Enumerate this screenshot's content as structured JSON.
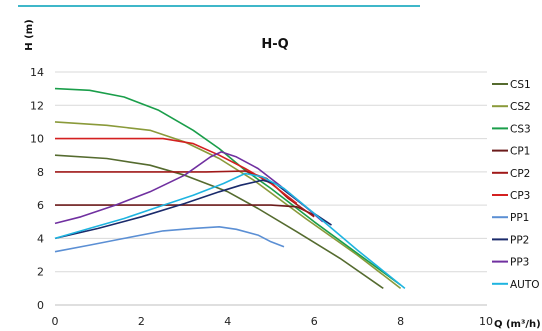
{
  "chart_data": {
    "type": "line",
    "title": "H-Q",
    "xlabel": "Q (m³/h)",
    "ylabel": "H (m)",
    "xlim": [
      0,
      10
    ],
    "ylim": [
      0,
      14
    ],
    "x_ticks": [
      "0",
      "2",
      "4",
      "6",
      "8",
      "10"
    ],
    "y_ticks": [
      "0",
      "2",
      "4",
      "6",
      "8",
      "10",
      "12",
      "14"
    ],
    "grid": "horizontal",
    "legend_position": "right",
    "series": [
      {
        "name": "CS1",
        "color": "#556b2f",
        "points": [
          [
            0,
            9.0
          ],
          [
            1.2,
            8.8
          ],
          [
            2.2,
            8.4
          ],
          [
            3.0,
            7.8
          ],
          [
            4.0,
            6.8
          ],
          [
            4.7,
            5.8
          ],
          [
            5.6,
            4.4
          ],
          [
            6.6,
            2.8
          ],
          [
            7.6,
            1.0
          ]
        ]
      },
      {
        "name": "CS2",
        "color": "#8a9a3a",
        "points": [
          [
            0,
            11.0
          ],
          [
            1.2,
            10.8
          ],
          [
            2.2,
            10.5
          ],
          [
            3.0,
            9.8
          ],
          [
            3.8,
            8.8
          ],
          [
            4.6,
            7.5
          ],
          [
            5.8,
            5.2
          ],
          [
            7.0,
            3.0
          ],
          [
            8.0,
            1.0
          ]
        ]
      },
      {
        "name": "CS3",
        "color": "#1a9e4a",
        "points": [
          [
            0,
            13.0
          ],
          [
            0.8,
            12.9
          ],
          [
            1.6,
            12.5
          ],
          [
            2.4,
            11.7
          ],
          [
            3.2,
            10.5
          ],
          [
            3.8,
            9.4
          ],
          [
            4.4,
            8.1
          ],
          [
            5.0,
            7.0
          ],
          [
            6.0,
            5.0
          ],
          [
            7.0,
            3.1
          ],
          [
            8.0,
            1.2
          ]
        ]
      },
      {
        "name": "CP1",
        "color": "#6b1a1a",
        "points": [
          [
            0,
            6.0
          ],
          [
            2.0,
            6.0
          ],
          [
            4.0,
            6.0
          ],
          [
            5.0,
            6.0
          ],
          [
            5.6,
            5.9
          ],
          [
            6.0,
            5.4
          ]
        ]
      },
      {
        "name": "CP2",
        "color": "#a01818",
        "points": [
          [
            0,
            8.0
          ],
          [
            2.0,
            8.0
          ],
          [
            3.5,
            8.0
          ],
          [
            4.4,
            8.05
          ],
          [
            4.9,
            7.6
          ],
          [
            5.4,
            6.4
          ],
          [
            6.0,
            5.3
          ]
        ]
      },
      {
        "name": "CP3",
        "color": "#d42020",
        "points": [
          [
            0,
            10.0
          ],
          [
            2.5,
            10.0
          ],
          [
            3.2,
            9.7
          ],
          [
            3.8,
            9.0
          ],
          [
            4.4,
            8.2
          ],
          [
            5.0,
            7.3
          ],
          [
            5.6,
            6.1
          ]
        ]
      },
      {
        "name": "PP1",
        "color": "#5b8fd4",
        "points": [
          [
            0,
            3.2
          ],
          [
            0.8,
            3.6
          ],
          [
            1.6,
            4.0
          ],
          [
            2.5,
            4.45
          ],
          [
            3.2,
            4.6
          ],
          [
            3.8,
            4.7
          ],
          [
            4.2,
            4.55
          ],
          [
            4.7,
            4.2
          ],
          [
            5.0,
            3.8
          ],
          [
            5.3,
            3.5
          ]
        ]
      },
      {
        "name": "PP2",
        "color": "#1a2a6b",
        "points": [
          [
            0,
            4.0
          ],
          [
            1.0,
            4.6
          ],
          [
            2.0,
            5.3
          ],
          [
            3.0,
            6.1
          ],
          [
            3.8,
            6.8
          ],
          [
            4.3,
            7.2
          ],
          [
            4.8,
            7.5
          ],
          [
            5.1,
            7.3
          ],
          [
            5.5,
            6.5
          ],
          [
            6.0,
            5.5
          ],
          [
            6.4,
            4.8
          ]
        ]
      },
      {
        "name": "PP3",
        "color": "#7030a0",
        "points": [
          [
            0,
            4.9
          ],
          [
            0.6,
            5.3
          ],
          [
            1.4,
            6.0
          ],
          [
            2.2,
            6.8
          ],
          [
            3.0,
            7.8
          ],
          [
            3.6,
            8.9
          ],
          [
            3.85,
            9.2
          ],
          [
            4.2,
            8.9
          ],
          [
            4.7,
            8.2
          ],
          [
            5.2,
            7.2
          ],
          [
            5.8,
            5.9
          ],
          [
            6.2,
            5.0
          ]
        ]
      },
      {
        "name": "AUTO",
        "color": "#1eb4e0",
        "points": [
          [
            0,
            4.0
          ],
          [
            0.8,
            4.6
          ],
          [
            1.6,
            5.2
          ],
          [
            2.4,
            5.9
          ],
          [
            3.2,
            6.6
          ],
          [
            3.9,
            7.3
          ],
          [
            4.4,
            7.9
          ],
          [
            4.8,
            7.7
          ],
          [
            5.3,
            7.0
          ],
          [
            6.0,
            5.5
          ],
          [
            7.0,
            3.3
          ],
          [
            8.1,
            1.0
          ]
        ]
      }
    ]
  }
}
